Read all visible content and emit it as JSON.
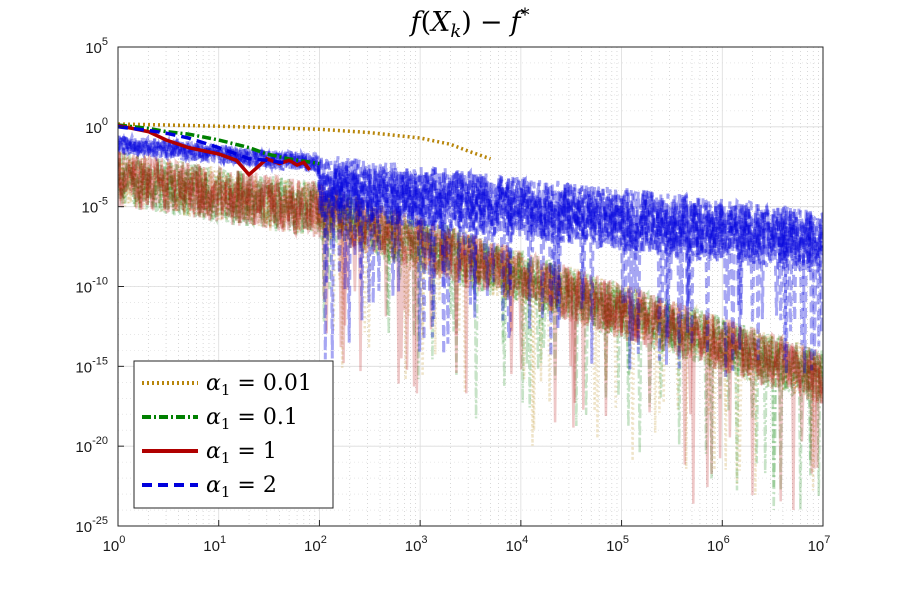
{
  "chart_data": {
    "type": "line",
    "title": "f(X_k) − f^*",
    "title_parts": {
      "f": "f",
      "open": "(",
      "X": "X",
      "k": "k",
      "close": ")",
      "minus": "−",
      "fstar_base": "f",
      "fstar_sup": "*"
    },
    "xlabel": "",
    "ylabel": "",
    "x_scale": "log",
    "y_scale": "log",
    "xlim": [
      1,
      10000000
    ],
    "ylim": [
      1e-25,
      100000
    ],
    "grid": true,
    "minor_grid": true,
    "x_ticks": [
      {
        "base": "10",
        "exp": "0",
        "value": 1
      },
      {
        "base": "10",
        "exp": "1",
        "value": 10
      },
      {
        "base": "10",
        "exp": "2",
        "value": 100
      },
      {
        "base": "10",
        "exp": "3",
        "value": 1000
      },
      {
        "base": "10",
        "exp": "4",
        "value": 10000
      },
      {
        "base": "10",
        "exp": "5",
        "value": 100000
      },
      {
        "base": "10",
        "exp": "6",
        "value": 1000000
      },
      {
        "base": "10",
        "exp": "7",
        "value": 10000000
      }
    ],
    "y_ticks": [
      {
        "base": "10",
        "exp": "-25",
        "value": 1e-25
      },
      {
        "base": "10",
        "exp": "-20",
        "value": 1e-20
      },
      {
        "base": "10",
        "exp": "-15",
        "value": 1e-15
      },
      {
        "base": "10",
        "exp": "-10",
        "value": 1e-10
      },
      {
        "base": "10",
        "exp": "-5",
        "value": 1e-05
      },
      {
        "base": "10",
        "exp": "0",
        "value": 1
      },
      {
        "base": "10",
        "exp": "5",
        "value": 100000
      }
    ],
    "legend_position": "bottom-left",
    "series": [
      {
        "name": "α1 = 0.01",
        "label_parts": {
          "alpha": "α",
          "sub": "1",
          "rest": " = 0.01"
        },
        "color": "#b8860b",
        "dash": "dotted",
        "x": [
          1,
          3,
          10,
          30,
          100,
          300,
          1000,
          2000,
          3000,
          5000
        ],
        "y": [
          1.5,
          1.3,
          1.1,
          0.9,
          0.7,
          0.45,
          0.2,
          0.08,
          0.03,
          0.01
        ]
      },
      {
        "name": "α1 = 0.1",
        "label_parts": {
          "alpha": "α",
          "sub": "1",
          "rest": " = 0.1"
        },
        "color": "#008000",
        "dash": "dashdot",
        "x": [
          1,
          2,
          3,
          5,
          10,
          20,
          30,
          50,
          100
        ],
        "y": [
          1.3,
          0.8,
          0.5,
          0.35,
          0.15,
          0.05,
          0.02,
          0.01,
          0.005
        ]
      },
      {
        "name": "α1 = 1",
        "label_parts": {
          "alpha": "α",
          "sub": "1",
          "rest": " = 1"
        },
        "color": "#b00000",
        "dash": "solid",
        "x": [
          1,
          2,
          3,
          5,
          10,
          15,
          20,
          30,
          40,
          50,
          60,
          70,
          80
        ],
        "y": [
          1.2,
          0.5,
          0.15,
          0.05,
          0.02,
          0.008,
          0.001,
          0.01,
          0.005,
          0.008,
          0.004,
          0.006,
          0.002
        ]
      },
      {
        "name": "α1 = 2",
        "label_parts": {
          "alpha": "α",
          "sub": "1",
          "rest": " = 2"
        },
        "color": "#0000dd",
        "dash": "dashed",
        "x": [
          1,
          2,
          3,
          5,
          10,
          20,
          30,
          50
        ],
        "y": [
          1.0,
          0.6,
          0.4,
          0.2,
          0.05,
          0.01,
          0.008,
          0.005
        ]
      }
    ]
  }
}
